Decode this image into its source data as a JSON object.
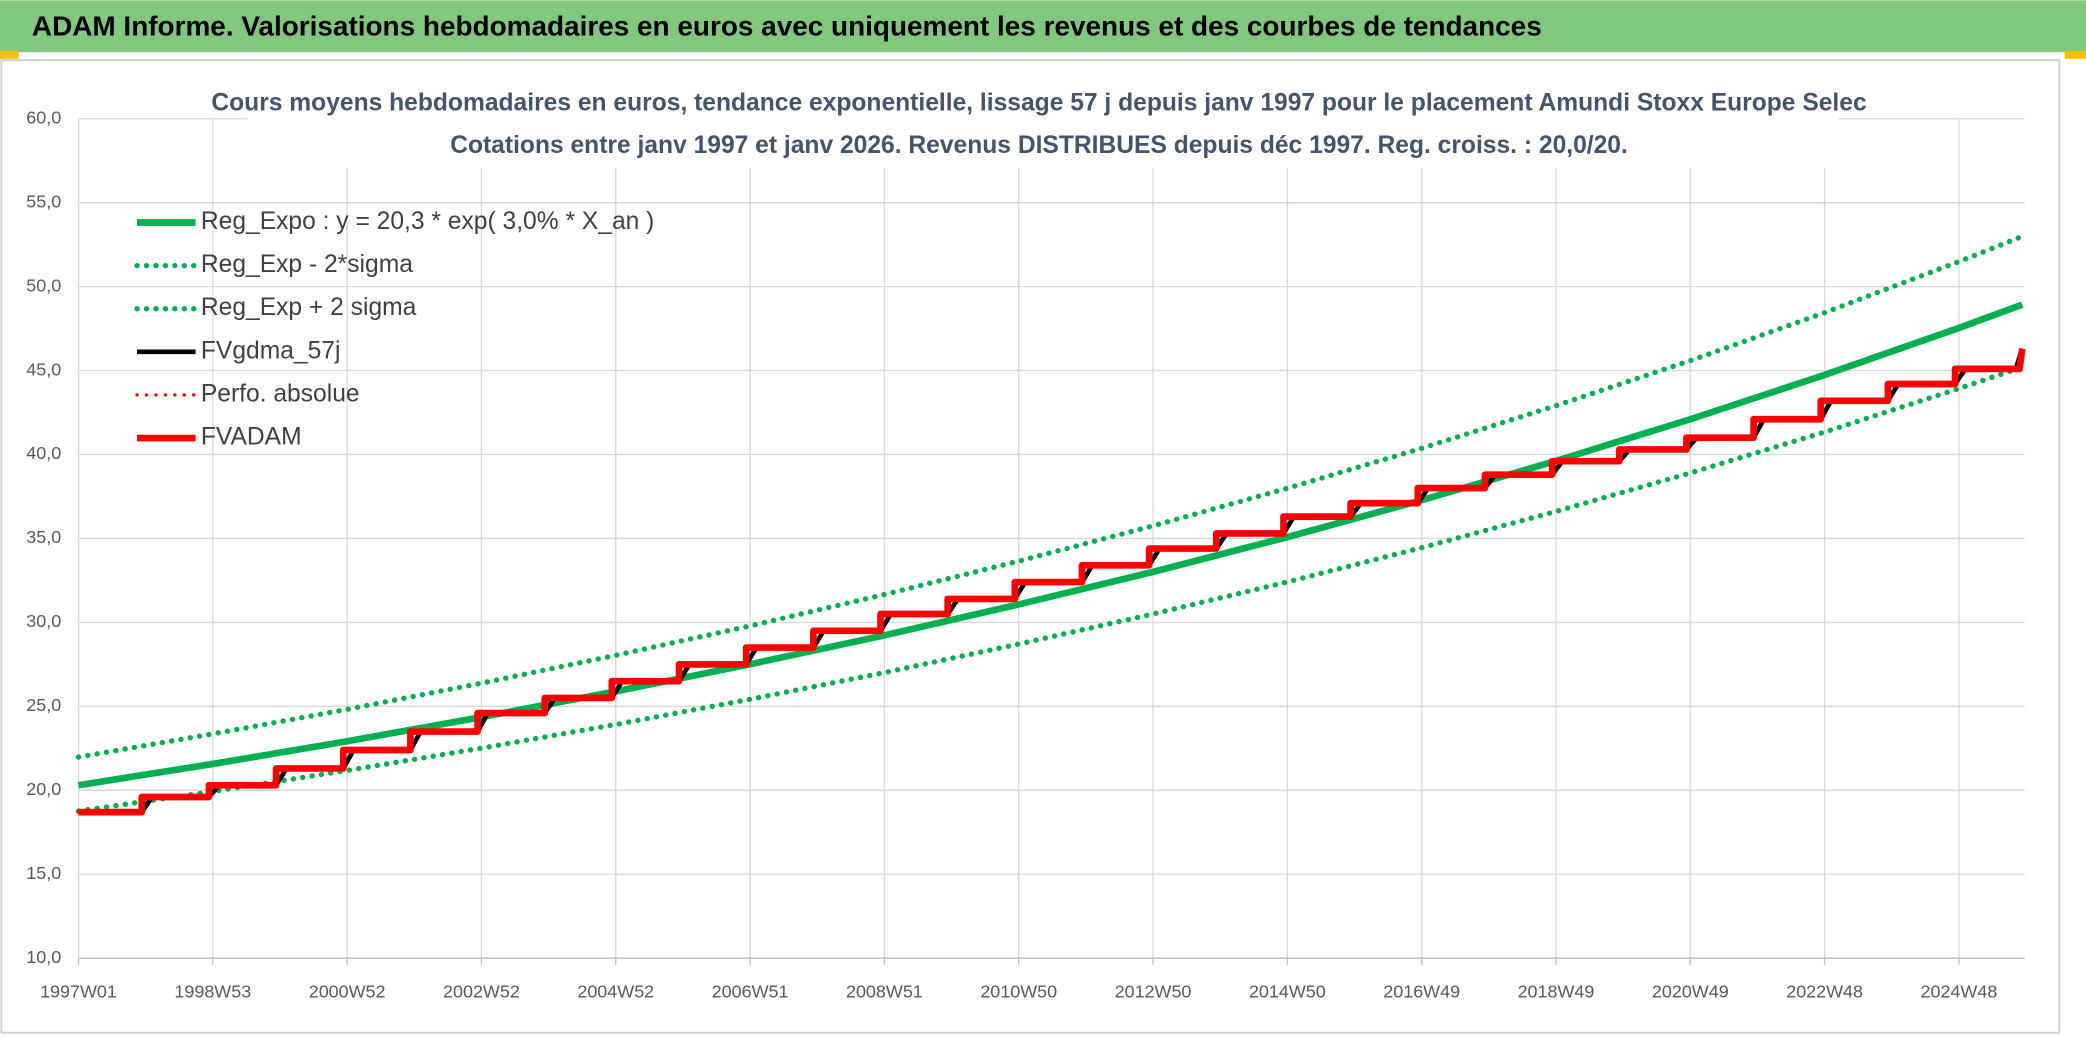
{
  "header": {
    "title": "ADAM Informe. Valorisations hebdomadaires en euros avec uniquement les revenus et des courbes de tendances"
  },
  "chart_data": {
    "type": "line",
    "title": "Cours moyens hebdomadaires en euros, tendance exponentielle, lissage 57 j depuis janv 1997 pour le placement Amundi Stoxx Europe Selec",
    "subtitle": "Cotations entre janv 1997 et janv 2026. Revenus DISTRIBUES depuis déc 1997. Reg. croiss. : 20,0/20.",
    "xlim": [
      0,
      1507
    ],
    "xticks": [
      {
        "value": 0,
        "label": "1997W01"
      },
      {
        "value": 104,
        "label": "1998W53"
      },
      {
        "value": 208,
        "label": "2000W52"
      },
      {
        "value": 312,
        "label": "2002W52"
      },
      {
        "value": 416,
        "label": "2004W52"
      },
      {
        "value": 520,
        "label": "2006W51"
      },
      {
        "value": 624,
        "label": "2008W51"
      },
      {
        "value": 728,
        "label": "2010W50"
      },
      {
        "value": 832,
        "label": "2012W50"
      },
      {
        "value": 936,
        "label": "2014W50"
      },
      {
        "value": 1040,
        "label": "2016W49"
      },
      {
        "value": 1144,
        "label": "2018W49"
      },
      {
        "value": 1248,
        "label": "2020W49"
      },
      {
        "value": 1352,
        "label": "2022W48"
      },
      {
        "value": 1456,
        "label": "2024W48"
      }
    ],
    "ylim": [
      10,
      60
    ],
    "yticks": [
      {
        "value": 10,
        "label": "10,0"
      },
      {
        "value": 15,
        "label": "15,0"
      },
      {
        "value": 20,
        "label": "20,0"
      },
      {
        "value": 25,
        "label": "25,0"
      },
      {
        "value": 30,
        "label": "30,0"
      },
      {
        "value": 35,
        "label": "35,0"
      },
      {
        "value": 40,
        "label": "40,0"
      },
      {
        "value": 45,
        "label": "45,0"
      },
      {
        "value": 50,
        "label": "50,0"
      },
      {
        "value": 55,
        "label": "55,0"
      },
      {
        "value": 60,
        "label": "60,0"
      }
    ],
    "grid": true,
    "legend": "top-left",
    "series": [
      {
        "name": "Reg_Expo : y = 20,3 * exp( 3,0% *  X_an )",
        "color": "#00b050",
        "style": "solid",
        "x": [
          0,
          104,
          208,
          312,
          416,
          520,
          624,
          728,
          832,
          936,
          1040,
          1144,
          1248,
          1352,
          1456,
          1505
        ],
        "values": [
          20.3,
          21.57,
          22.92,
          24.36,
          25.89,
          27.51,
          29.23,
          31.07,
          33.01,
          35.08,
          37.28,
          39.62,
          42.1,
          44.74,
          47.54,
          48.93
        ]
      },
      {
        "name": "Reg_Exp - 2*sigma",
        "color": "#00b050",
        "style": "dotted",
        "x": [
          0,
          104,
          208,
          312,
          416,
          520,
          624,
          728,
          832,
          936,
          1040,
          1144,
          1248,
          1352,
          1456,
          1505
        ],
        "values": [
          18.76,
          19.93,
          21.18,
          22.51,
          23.92,
          25.42,
          27.01,
          28.71,
          30.5,
          32.41,
          34.45,
          36.61,
          38.9,
          41.34,
          43.93,
          45.21
        ]
      },
      {
        "name": "Reg_Exp + 2 sigma",
        "color": "#00b050",
        "style": "dotted",
        "x": [
          0,
          104,
          208,
          312,
          416,
          520,
          624,
          728,
          832,
          936,
          1040,
          1144,
          1248,
          1352,
          1456,
          1505
        ],
        "values": [
          21.98,
          23.36,
          24.82,
          26.38,
          28.04,
          29.79,
          31.66,
          33.65,
          35.75,
          37.99,
          40.37,
          42.91,
          45.59,
          48.45,
          51.49,
          52.99
        ]
      },
      {
        "name": "FVgdma_57j",
        "color": "#000000",
        "style": "solid",
        "x": [
          0,
          49,
          57,
          101,
          109,
          153,
          161,
          205,
          213,
          257,
          265,
          309,
          317,
          361,
          369,
          413,
          421,
          465,
          473,
          517,
          525,
          569,
          577,
          621,
          629,
          673,
          681,
          725,
          733,
          777,
          785,
          829,
          837,
          881,
          889,
          933,
          941,
          985,
          993,
          1037,
          1045,
          1089,
          1097,
          1141,
          1149,
          1193,
          1201,
          1245,
          1253,
          1297,
          1305,
          1349,
          1357,
          1401,
          1409,
          1453,
          1461,
          1500,
          1505
        ],
        "values": [
          18.7,
          18.7,
          19.6,
          19.6,
          20.3,
          20.3,
          21.3,
          21.3,
          22.4,
          22.4,
          23.5,
          23.5,
          24.6,
          24.6,
          25.5,
          25.5,
          26.5,
          26.5,
          27.5,
          27.5,
          28.5,
          28.5,
          29.5,
          29.5,
          30.5,
          30.5,
          31.4,
          31.4,
          32.4,
          32.4,
          33.4,
          33.4,
          34.4,
          34.4,
          35.3,
          35.3,
          36.3,
          36.3,
          37.1,
          37.1,
          38.0,
          38.0,
          38.8,
          38.8,
          39.6,
          39.6,
          40.3,
          40.3,
          41.0,
          41.0,
          42.1,
          42.1,
          43.2,
          43.2,
          44.2,
          44.2,
          45.1,
          45.1,
          46.3
        ]
      },
      {
        "name": "Perfo. absolue",
        "color": "#ff0000",
        "style": "dotted",
        "x": [
          0,
          49,
          49,
          101,
          101,
          153,
          153,
          205,
          205,
          257,
          257,
          309,
          309,
          361,
          361,
          413,
          413,
          465,
          465,
          517,
          517,
          569,
          569,
          621,
          621,
          673,
          673,
          725,
          725,
          777,
          777,
          829,
          829,
          881,
          881,
          933,
          933,
          985,
          985,
          1037,
          1037,
          1089,
          1089,
          1141,
          1141,
          1193,
          1193,
          1245,
          1245,
          1297,
          1297,
          1349,
          1349,
          1401,
          1401,
          1453,
          1453,
          1503,
          1505
        ],
        "values": [
          18.7,
          18.7,
          19.6,
          19.6,
          20.3,
          20.3,
          21.3,
          21.3,
          22.4,
          22.4,
          23.5,
          23.5,
          24.6,
          24.6,
          25.5,
          25.5,
          26.5,
          26.5,
          27.5,
          27.5,
          28.5,
          28.5,
          29.5,
          29.5,
          30.5,
          30.5,
          31.4,
          31.4,
          32.4,
          32.4,
          33.4,
          33.4,
          34.4,
          34.4,
          35.3,
          35.3,
          36.3,
          36.3,
          37.1,
          37.1,
          38.0,
          38.0,
          38.8,
          38.8,
          39.6,
          39.6,
          40.3,
          40.3,
          41.0,
          41.0,
          42.1,
          42.1,
          43.2,
          43.2,
          44.2,
          44.2,
          45.1,
          45.1,
          46.3
        ]
      },
      {
        "name": "FVADAM",
        "color": "#ff0000",
        "style": "solid",
        "x": [
          0,
          49,
          49,
          101,
          101,
          153,
          153,
          205,
          205,
          257,
          257,
          309,
          309,
          361,
          361,
          413,
          413,
          465,
          465,
          517,
          517,
          569,
          569,
          621,
          621,
          673,
          673,
          725,
          725,
          777,
          777,
          829,
          829,
          881,
          881,
          933,
          933,
          985,
          985,
          1037,
          1037,
          1089,
          1089,
          1141,
          1141,
          1193,
          1193,
          1245,
          1245,
          1297,
          1297,
          1349,
          1349,
          1401,
          1401,
          1453,
          1453,
          1503,
          1505
        ],
        "values": [
          18.7,
          18.7,
          19.6,
          19.6,
          20.3,
          20.3,
          21.3,
          21.3,
          22.4,
          22.4,
          23.5,
          23.5,
          24.6,
          24.6,
          25.5,
          25.5,
          26.5,
          26.5,
          27.5,
          27.5,
          28.5,
          28.5,
          29.5,
          29.5,
          30.5,
          30.5,
          31.4,
          31.4,
          32.4,
          32.4,
          33.4,
          33.4,
          34.4,
          34.4,
          35.3,
          35.3,
          36.3,
          36.3,
          37.1,
          37.1,
          38.0,
          38.0,
          38.8,
          38.8,
          39.6,
          39.6,
          40.3,
          40.3,
          41.0,
          41.0,
          42.1,
          42.1,
          43.2,
          43.2,
          44.2,
          44.2,
          45.1,
          45.1,
          46.3
        ]
      }
    ]
  }
}
